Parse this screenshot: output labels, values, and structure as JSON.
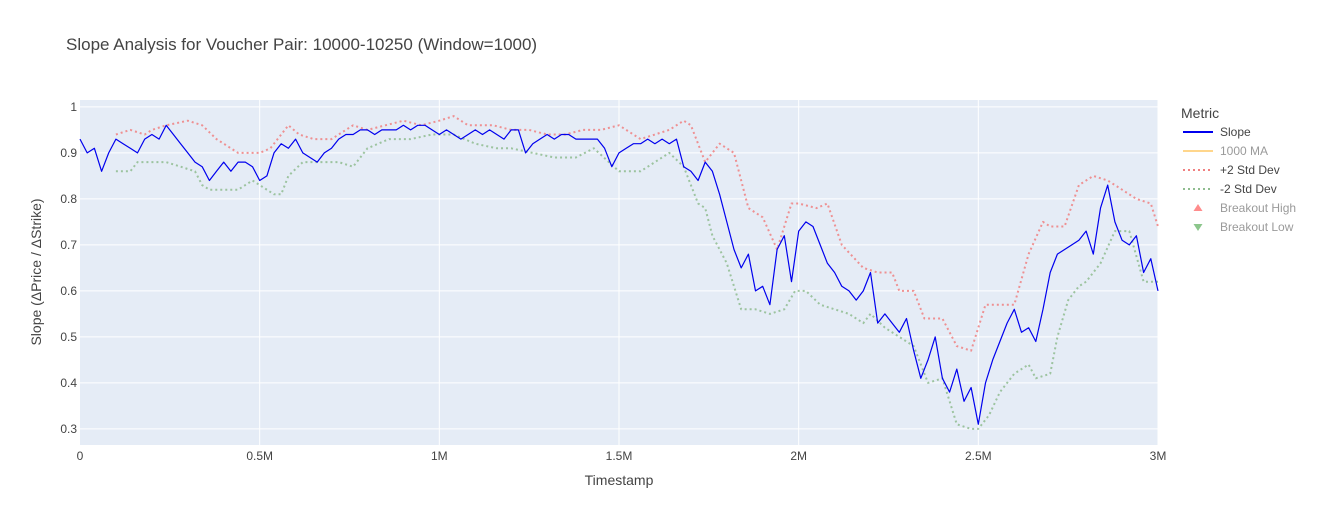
{
  "chart_data": {
    "type": "line",
    "title": "Slope Analysis for Voucher Pair: 10000-10250 (Window=1000)",
    "xlabel": "Timestamp",
    "ylabel": "Slope (ΔPrice / ΔStrike)",
    "xlim": [
      0,
      3000000
    ],
    "ylim": [
      0.265,
      1.015
    ],
    "x_ticks": [
      0,
      500000,
      1000000,
      1500000,
      2000000,
      2500000,
      3000000
    ],
    "x_tick_labels": [
      "0",
      "0.5M",
      "1M",
      "1.5M",
      "2M",
      "2.5M",
      "3M"
    ],
    "y_ticks": [
      0.3,
      0.4,
      0.5,
      0.6,
      0.7,
      0.8,
      0.9,
      1
    ],
    "y_tick_labels": [
      "0.3",
      "0.4",
      "0.5",
      "0.6",
      "0.7",
      "0.8",
      "0.9",
      "1"
    ],
    "grid": true,
    "legend_title": "Metric",
    "legend_position": "right",
    "legend": [
      {
        "name": "Slope",
        "symbol": "line",
        "color": "#0000ee",
        "active": true
      },
      {
        "name": "1000 MA",
        "symbol": "line",
        "color": "#ffa500",
        "active": false
      },
      {
        "name": "+2 Std Dev",
        "symbol": "dotted",
        "color": "#f08080",
        "active": true
      },
      {
        "name": "-2 Std Dev",
        "symbol": "dotted",
        "color": "#8fbc8f",
        "active": true
      },
      {
        "name": "Breakout High",
        "symbol": "triangle-up",
        "color": "#ff0000",
        "active": false
      },
      {
        "name": "Breakout Low",
        "symbol": "triangle-down",
        "color": "#008000",
        "active": false
      }
    ],
    "series": [
      {
        "name": "Slope",
        "color": "#0000ee",
        "style": "solid",
        "x": [
          0,
          20000,
          40000,
          60000,
          80000,
          100000,
          120000,
          140000,
          160000,
          180000,
          200000,
          220000,
          240000,
          260000,
          280000,
          300000,
          320000,
          340000,
          360000,
          380000,
          400000,
          420000,
          440000,
          460000,
          480000,
          500000,
          520000,
          540000,
          560000,
          580000,
          600000,
          620000,
          640000,
          660000,
          680000,
          700000,
          720000,
          740000,
          760000,
          780000,
          800000,
          820000,
          840000,
          860000,
          880000,
          900000,
          920000,
          940000,
          960000,
          980000,
          1000000,
          1020000,
          1040000,
          1060000,
          1080000,
          1100000,
          1120000,
          1140000,
          1160000,
          1180000,
          1200000,
          1220000,
          1240000,
          1260000,
          1280000,
          1300000,
          1320000,
          1340000,
          1360000,
          1380000,
          1400000,
          1420000,
          1440000,
          1460000,
          1480000,
          1500000,
          1520000,
          1540000,
          1560000,
          1580000,
          1600000,
          1620000,
          1640000,
          1660000,
          1680000,
          1700000,
          1720000,
          1740000,
          1760000,
          1780000,
          1800000,
          1820000,
          1840000,
          1860000,
          1880000,
          1900000,
          1920000,
          1940000,
          1960000,
          1980000,
          2000000,
          2020000,
          2040000,
          2060000,
          2080000,
          2100000,
          2120000,
          2140000,
          2160000,
          2180000,
          2200000,
          2220000,
          2240000,
          2260000,
          2280000,
          2300000,
          2320000,
          2340000,
          2360000,
          2380000,
          2400000,
          2420000,
          2440000,
          2460000,
          2480000,
          2500000,
          2520000,
          2540000,
          2560000,
          2580000,
          2600000,
          2620000,
          2640000,
          2660000,
          2680000,
          2700000,
          2720000,
          2740000,
          2760000,
          2780000,
          2800000,
          2820000,
          2840000,
          2860000,
          2880000,
          2900000,
          2920000,
          2940000,
          2960000,
          2980000,
          3000000
        ],
        "y": [
          0.93,
          0.9,
          0.91,
          0.86,
          0.9,
          0.93,
          0.92,
          0.91,
          0.9,
          0.93,
          0.94,
          0.93,
          0.96,
          0.94,
          0.92,
          0.9,
          0.88,
          0.87,
          0.84,
          0.86,
          0.88,
          0.86,
          0.88,
          0.88,
          0.87,
          0.84,
          0.85,
          0.9,
          0.92,
          0.91,
          0.93,
          0.9,
          0.89,
          0.88,
          0.9,
          0.91,
          0.93,
          0.94,
          0.94,
          0.95,
          0.95,
          0.94,
          0.95,
          0.95,
          0.95,
          0.96,
          0.95,
          0.96,
          0.96,
          0.95,
          0.94,
          0.95,
          0.94,
          0.93,
          0.94,
          0.95,
          0.94,
          0.95,
          0.94,
          0.93,
          0.95,
          0.95,
          0.9,
          0.92,
          0.93,
          0.94,
          0.93,
          0.94,
          0.94,
          0.93,
          0.93,
          0.93,
          0.93,
          0.91,
          0.87,
          0.9,
          0.91,
          0.92,
          0.92,
          0.93,
          0.92,
          0.93,
          0.92,
          0.93,
          0.87,
          0.86,
          0.84,
          0.88,
          0.86,
          0.81,
          0.75,
          0.69,
          0.65,
          0.68,
          0.6,
          0.61,
          0.57,
          0.69,
          0.72,
          0.62,
          0.73,
          0.75,
          0.74,
          0.7,
          0.66,
          0.64,
          0.61,
          0.6,
          0.58,
          0.6,
          0.64,
          0.53,
          0.55,
          0.53,
          0.51,
          0.54,
          0.47,
          0.41,
          0.45,
          0.5,
          0.41,
          0.38,
          0.43,
          0.36,
          0.39,
          0.31,
          0.4,
          0.45,
          0.49,
          0.53,
          0.56,
          0.51,
          0.52,
          0.49,
          0.56,
          0.64,
          0.68,
          0.69,
          0.7,
          0.71,
          0.73,
          0.68,
          0.78,
          0.83,
          0.75,
          0.71,
          0.7,
          0.72,
          0.64,
          0.67,
          0.6
        ]
      },
      {
        "name": "+2 Std Dev",
        "color": "#f08080",
        "style": "dotted",
        "x": [
          100000,
          140000,
          180000,
          200000,
          240000,
          300000,
          340000,
          380000,
          440000,
          500000,
          530000,
          560000,
          580000,
          610000,
          650000,
          700000,
          760000,
          800000,
          850000,
          900000,
          950000,
          1000000,
          1040000,
          1080000,
          1150000,
          1200000,
          1250000,
          1300000,
          1350000,
          1400000,
          1450000,
          1500000,
          1560000,
          1600000,
          1640000,
          1680000,
          1700000,
          1740000,
          1760000,
          1780000,
          1820000,
          1840000,
          1860000,
          1900000,
          1940000,
          1980000,
          2000000,
          2050000,
          2080000,
          2120000,
          2180000,
          2220000,
          2260000,
          2280000,
          2320000,
          2350000,
          2400000,
          2440000,
          2480000,
          2520000,
          2560000,
          2600000,
          2640000,
          2680000,
          2700000,
          2740000,
          2780000,
          2820000,
          2860000,
          2900000,
          2940000,
          2980000,
          3000000
        ],
        "y": [
          0.94,
          0.95,
          0.94,
          0.95,
          0.96,
          0.97,
          0.96,
          0.93,
          0.9,
          0.9,
          0.91,
          0.94,
          0.96,
          0.94,
          0.93,
          0.93,
          0.96,
          0.95,
          0.96,
          0.97,
          0.96,
          0.97,
          0.98,
          0.96,
          0.96,
          0.95,
          0.95,
          0.94,
          0.94,
          0.95,
          0.95,
          0.96,
          0.93,
          0.94,
          0.95,
          0.97,
          0.96,
          0.88,
          0.9,
          0.92,
          0.9,
          0.84,
          0.78,
          0.76,
          0.69,
          0.79,
          0.79,
          0.78,
          0.79,
          0.7,
          0.65,
          0.64,
          0.64,
          0.6,
          0.6,
          0.54,
          0.54,
          0.48,
          0.47,
          0.57,
          0.57,
          0.57,
          0.68,
          0.75,
          0.74,
          0.74,
          0.83,
          0.85,
          0.84,
          0.82,
          0.8,
          0.79,
          0.74
        ]
      },
      {
        "name": "-2 Std Dev",
        "color": "#8fbc8f",
        "style": "dotted",
        "x": [
          100000,
          140000,
          160000,
          200000,
          240000,
          280000,
          320000,
          340000,
          360000,
          400000,
          440000,
          480000,
          500000,
          540000,
          560000,
          580000,
          620000,
          680000,
          720000,
          760000,
          800000,
          860000,
          920000,
          980000,
          1040000,
          1100000,
          1160000,
          1200000,
          1260000,
          1320000,
          1380000,
          1430000,
          1500000,
          1560000,
          1600000,
          1640000,
          1680000,
          1720000,
          1740000,
          1760000,
          1800000,
          1840000,
          1880000,
          1920000,
          1960000,
          1990000,
          2020000,
          2060000,
          2100000,
          2140000,
          2180000,
          2200000,
          2240000,
          2280000,
          2320000,
          2360000,
          2400000,
          2440000,
          2480000,
          2500000,
          2530000,
          2560000,
          2600000,
          2640000,
          2660000,
          2700000,
          2720000,
          2750000,
          2780000,
          2800000,
          2840000,
          2880000,
          2920000,
          2960000,
          3000000
        ],
        "y": [
          0.86,
          0.86,
          0.88,
          0.88,
          0.88,
          0.87,
          0.86,
          0.83,
          0.82,
          0.82,
          0.82,
          0.84,
          0.83,
          0.81,
          0.81,
          0.85,
          0.88,
          0.88,
          0.88,
          0.87,
          0.91,
          0.93,
          0.93,
          0.94,
          0.94,
          0.92,
          0.91,
          0.91,
          0.9,
          0.89,
          0.89,
          0.91,
          0.86,
          0.86,
          0.88,
          0.9,
          0.87,
          0.79,
          0.78,
          0.72,
          0.66,
          0.56,
          0.56,
          0.55,
          0.56,
          0.6,
          0.6,
          0.57,
          0.56,
          0.55,
          0.53,
          0.55,
          0.52,
          0.5,
          0.48,
          0.4,
          0.41,
          0.31,
          0.3,
          0.3,
          0.33,
          0.38,
          0.42,
          0.44,
          0.41,
          0.42,
          0.5,
          0.58,
          0.61,
          0.62,
          0.66,
          0.73,
          0.73,
          0.62,
          0.62
        ]
      }
    ]
  }
}
